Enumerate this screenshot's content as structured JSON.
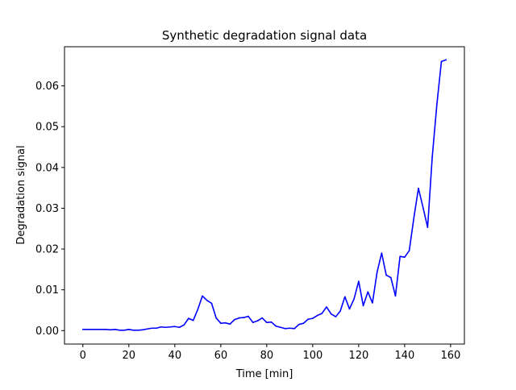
{
  "chart_data": {
    "type": "line",
    "title": "Synthetic degradation signal data",
    "xlabel": "Time [min]",
    "ylabel": "Degradation signal",
    "xlim": [
      -8,
      166
    ],
    "ylim": [
      -0.0033,
      0.0696
    ],
    "xticks": [
      0,
      20,
      40,
      60,
      80,
      100,
      120,
      140,
      160
    ],
    "yticks": [
      0.0,
      0.01,
      0.02,
      0.03,
      0.04,
      0.05,
      0.06
    ],
    "xtick_labels": [
      "0",
      "20",
      "40",
      "60",
      "80",
      "100",
      "120",
      "140",
      "160"
    ],
    "ytick_labels": [
      "0.00",
      "0.01",
      "0.02",
      "0.03",
      "0.04",
      "0.05",
      "0.06"
    ],
    "grid": false,
    "series": [
      {
        "color": "#0000ff",
        "x": [
          0,
          2,
          4,
          6,
          8,
          10,
          12,
          14,
          16,
          18,
          20,
          22,
          24,
          26,
          28,
          30,
          32,
          34,
          36,
          38,
          40,
          42,
          44,
          46,
          48,
          50,
          52,
          54,
          56,
          58,
          60,
          62,
          64,
          66,
          68,
          70,
          72,
          74,
          76,
          78,
          80,
          82,
          84,
          86,
          88,
          90,
          92,
          94,
          96,
          98,
          100,
          102,
          104,
          106,
          108,
          110,
          112,
          114,
          116,
          118,
          120,
          122,
          124,
          126,
          128,
          130,
          132,
          134,
          136,
          138,
          140,
          142,
          144,
          146,
          148,
          150,
          152,
          154,
          156,
          158
        ],
        "y": [
          0.0003,
          0.0003,
          0.0003,
          0.0003,
          0.0003,
          0.0003,
          0.0002,
          0.0003,
          0.0001,
          0.0001,
          0.0003,
          0.0001,
          0.0001,
          0.0002,
          0.0004,
          0.0006,
          0.0006,
          0.0009,
          0.0008,
          0.0009,
          0.001,
          0.0008,
          0.0014,
          0.003,
          0.0025,
          0.0052,
          0.0085,
          0.0074,
          0.0067,
          0.0031,
          0.0018,
          0.0019,
          0.0016,
          0.0027,
          0.0031,
          0.0032,
          0.0035,
          0.002,
          0.0024,
          0.0031,
          0.002,
          0.0021,
          0.0011,
          0.0008,
          0.0005,
          0.0006,
          0.0005,
          0.0015,
          0.0018,
          0.0028,
          0.003,
          0.0037,
          0.0042,
          0.0058,
          0.0041,
          0.0034,
          0.0048,
          0.0083,
          0.0053,
          0.0078,
          0.0121,
          0.0061,
          0.0095,
          0.0068,
          0.0143,
          0.019,
          0.0136,
          0.013,
          0.0085,
          0.0182,
          0.018,
          0.0196,
          0.0276,
          0.0349,
          0.0302,
          0.0253,
          0.0425,
          0.0553,
          0.066,
          0.0664
        ]
      }
    ]
  }
}
